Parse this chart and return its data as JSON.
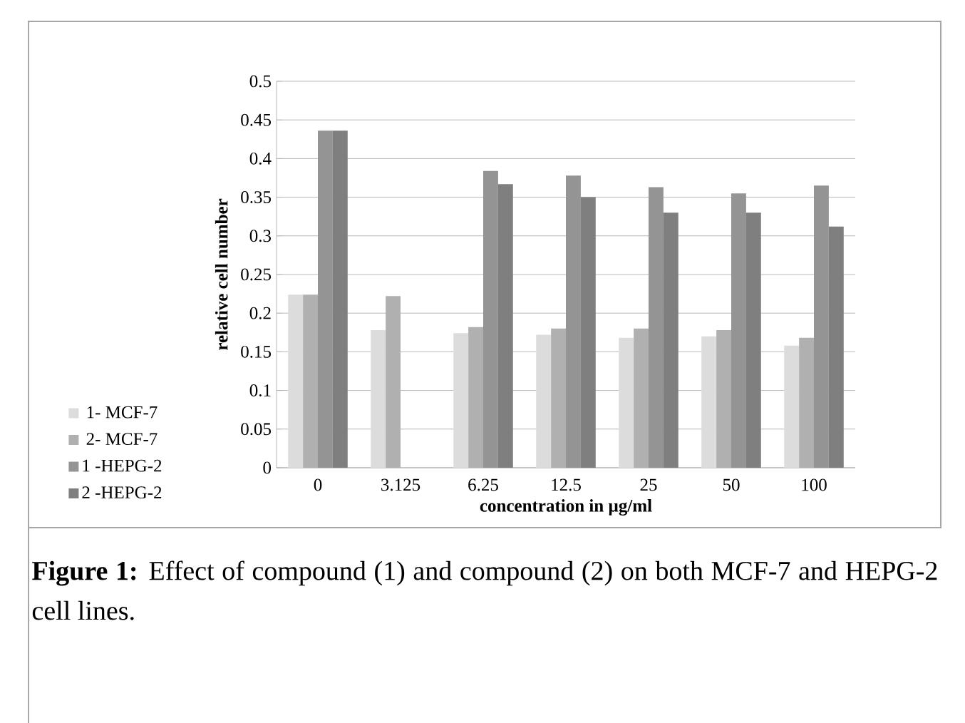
{
  "chart_data": {
    "type": "bar",
    "xlabel": "concentration in µg/ml",
    "ylabel": "relative cell number",
    "categories": [
      "0",
      "3.125",
      "6.25",
      "12.5",
      "25",
      "50",
      "100"
    ],
    "series": [
      {
        "name": "1- MCF-7",
        "color": "#dcdcdc",
        "values": [
          0.224,
          0.178,
          0.174,
          0.172,
          0.168,
          0.17,
          0.158
        ]
      },
      {
        "name": "2- MCF-7",
        "color": "#b0b0b0",
        "values": [
          0.224,
          0.222,
          0.182,
          0.18,
          0.18,
          0.178,
          0.168
        ]
      },
      {
        "name": "1 -HEPG-2",
        "color": "#949494",
        "values": [
          0.436,
          null,
          0.384,
          0.378,
          0.363,
          0.355,
          0.365
        ]
      },
      {
        "name": "2 -HEPG-2",
        "color": "#7f7f7f",
        "values": [
          0.436,
          null,
          0.367,
          0.35,
          0.33,
          0.33,
          0.312
        ]
      }
    ],
    "ylim": [
      0,
      0.5
    ],
    "yticks": [
      0,
      0.05,
      0.1,
      0.15,
      0.2,
      0.25,
      0.3,
      0.35,
      0.4,
      0.45,
      0.5
    ],
    "grid": "y",
    "legend": "left",
    "annotations": [
      "**Figure 1:** Effect of compound (1) and compound (2) on both MCF-7 and HEPG-2 cell lines."
    ]
  }
}
